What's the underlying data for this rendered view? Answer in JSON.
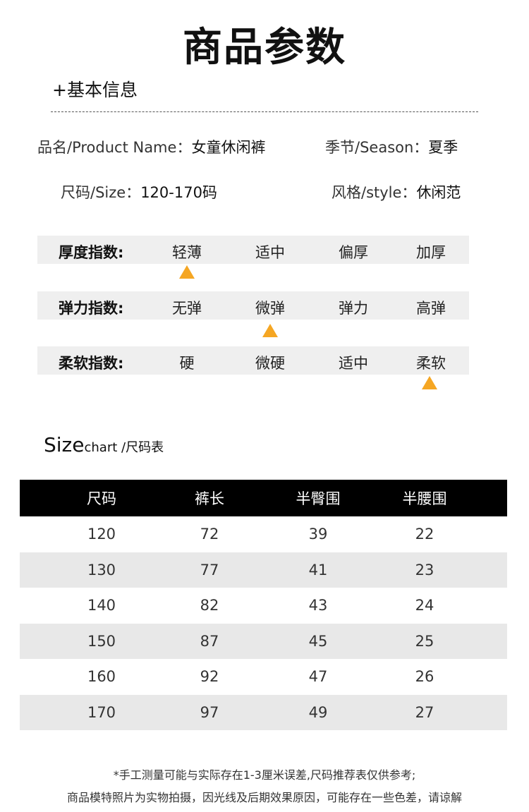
{
  "title": "商品参数",
  "basic_info": {
    "heading": "+基本信息",
    "product_name_label": "品名/Product Name：",
    "product_name_value": "女童休闲裤",
    "season_label": "季节/Season：",
    "season_value": "夏季",
    "size_label": "尺码/Size：",
    "size_value": "120-170码",
    "style_label": "风格/style：",
    "style_value": "休闲范"
  },
  "indices": [
    {
      "label": "厚度指数:",
      "options": [
        "轻薄",
        "适中",
        "偏厚",
        "加厚"
      ],
      "selected_option": "轻薄"
    },
    {
      "label": "弹力指数:",
      "options": [
        "无弹",
        "微弹",
        "弹力",
        "高弹"
      ],
      "selected_option": "微弹"
    },
    {
      "label": "柔软指数:",
      "options": [
        "硬",
        "微硬",
        "适中",
        "柔软"
      ],
      "selected_option": "柔软"
    }
  ],
  "marker_color": "#f5a623",
  "size_chart": {
    "title_big": "Size",
    "title_small": "chart /尺码表",
    "headers": [
      "尺码",
      "裤长",
      "半臀围",
      "半腰围"
    ],
    "rows": [
      [
        "120",
        "72",
        "39",
        "22"
      ],
      [
        "130",
        "77",
        "41",
        "23"
      ],
      [
        "140",
        "82",
        "43",
        "24"
      ],
      [
        "150",
        "87",
        "45",
        "25"
      ],
      [
        "160",
        "92",
        "47",
        "26"
      ],
      [
        "170",
        "97",
        "49",
        "27"
      ]
    ]
  },
  "notes": [
    "*手工测量可能与实际存在1-3厘米误差,尺码推荐表仅供参考;",
    "商品模特照片为实物拍摄，因光线及后期效果原因，可能存在一些色差，请谅解"
  ]
}
